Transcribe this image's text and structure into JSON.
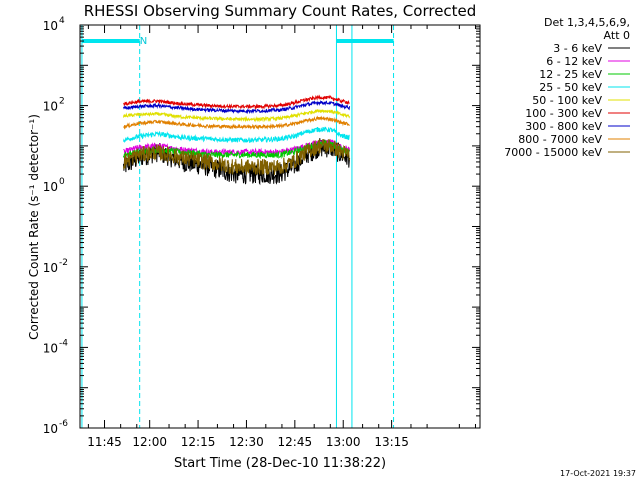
{
  "chart_data": {
    "type": "line",
    "title": "RHESSI Observing Summary Count Rates, Corrected",
    "xlabel": "Start Time (28-Dec-10 11:38:22)",
    "ylabel": "Corrected Count Rate (s⁻¹ detector⁻¹)",
    "x_unit": "minutes after 11:38:22",
    "xlim": [
      0,
      124
    ],
    "ylim": [
      1e-06,
      10000.0
    ],
    "yscale": "log",
    "x_ticks": [
      {
        "x": 7.6,
        "label": "11:45"
      },
      {
        "x": 21.6,
        "label": "12:00"
      },
      {
        "x": 36.6,
        "label": "12:15"
      },
      {
        "x": 51.6,
        "label": "12:30"
      },
      {
        "x": 66.6,
        "label": "12:45"
      },
      {
        "x": 81.6,
        "label": "13:00"
      },
      {
        "x": 96.6,
        "label": "13:15"
      }
    ],
    "y_ticks": [
      {
        "value": 1e-06,
        "base": "10",
        "exp": "-6"
      },
      {
        "value": 0.0001,
        "base": "10",
        "exp": "-4"
      },
      {
        "value": 0.01,
        "base": "10",
        "exp": "-2"
      },
      {
        "value": 1,
        "base": "10",
        "exp": "0"
      },
      {
        "value": 100,
        "base": "10",
        "exp": "2"
      },
      {
        "value": 10000,
        "base": "10",
        "exp": "4"
      }
    ],
    "legend": {
      "placement": "top-right",
      "header": [
        "Det 1,3,4,5,6,9,",
        "Att 0"
      ]
    },
    "annotations": [
      {
        "text": "N",
        "x": 19.7
      }
    ],
    "markers": [
      {
        "kind": "solid",
        "color": "#00e5ee",
        "x": 0.6
      },
      {
        "kind": "dashed",
        "color": "#00e5ee",
        "x": 18.5
      },
      {
        "kind": "solid",
        "color": "#00e5ee",
        "x": 79.5
      },
      {
        "kind": "solid",
        "color": "#00e5ee",
        "x": 84.3
      },
      {
        "kind": "dashed",
        "color": "#00e5ee",
        "x": 97.2
      }
    ],
    "flag_bars": [
      {
        "x": [
          0.6,
          18.5
        ],
        "value": 4000,
        "color": "#00e5ee"
      },
      {
        "x": [
          79.5,
          97.2
        ],
        "value": 4000,
        "color": "#00e5ee"
      }
    ],
    "data_range": [
      13.5,
      83.6
    ],
    "shape_x": [
      13.5,
      18,
      24,
      32,
      40,
      48,
      56,
      62,
      66,
      70,
      74,
      78,
      81,
      83.6
    ],
    "series": [
      {
        "name": "3 - 6 keV",
        "color": "#000000",
        "noise": 0.5,
        "values": [
          3,
          5,
          7,
          4,
          3,
          2,
          2,
          2,
          3,
          6,
          9,
          9,
          6,
          5
        ]
      },
      {
        "name": "6 - 12 keV",
        "color": "#e000e0",
        "noise": 0.15,
        "values": [
          7,
          9,
          10,
          8,
          7,
          7,
          7,
          7,
          8,
          10,
          12,
          12,
          9,
          8
        ]
      },
      {
        "name": "12 - 25 keV",
        "color": "#00c800",
        "noise": 0.15,
        "values": [
          6,
          7,
          8,
          7,
          6,
          6,
          6,
          6,
          7,
          9,
          11,
          11,
          8,
          7
        ]
      },
      {
        "name": "25 - 50 keV",
        "color": "#00e5ee",
        "noise": 0.12,
        "values": [
          14,
          17,
          20,
          16,
          15,
          14,
          14,
          15,
          17,
          22,
          26,
          25,
          18,
          16
        ]
      },
      {
        "name": "50 - 100 keV",
        "color": "#e0e000",
        "noise": 0.08,
        "values": [
          55,
          60,
          62,
          52,
          48,
          46,
          46,
          48,
          55,
          65,
          75,
          72,
          60,
          55
        ]
      },
      {
        "name": "100 - 300 keV",
        "color": "#e00000",
        "noise": 0.08,
        "values": [
          110,
          125,
          130,
          110,
          100,
          95,
          95,
          100,
          115,
          140,
          160,
          155,
          130,
          120
        ]
      },
      {
        "name": "300 - 800 keV",
        "color": "#0000c8",
        "noise": 0.08,
        "values": [
          85,
          95,
          100,
          85,
          78,
          74,
          74,
          78,
          88,
          105,
          120,
          115,
          98,
          90
        ]
      },
      {
        "name": "800 - 7000 keV",
        "color": "#e08000",
        "noise": 0.08,
        "values": [
          30,
          36,
          40,
          34,
          31,
          30,
          30,
          31,
          35,
          42,
          48,
          46,
          38,
          34
        ]
      },
      {
        "name": "7000 - 15000 keV",
        "color": "#806000",
        "noise": 0.4,
        "values": [
          4,
          6,
          7,
          5,
          4,
          3,
          3,
          3,
          4,
          7,
          10,
          10,
          7,
          6
        ]
      }
    ]
  },
  "footer": {
    "timestamp": "17-Oct-2021 19:37"
  }
}
